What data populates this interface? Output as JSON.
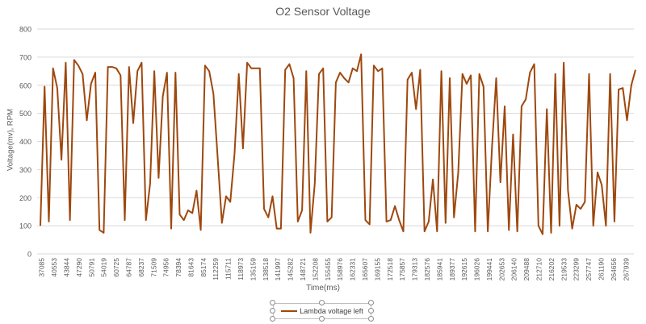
{
  "chart": {
    "title": "O2 Sensor Voltage",
    "xlabel": "Time(ms)",
    "ylabel": "Voltage(mv), RPM",
    "legend_label": "Lambda voltage left",
    "line_color": "#9e480e",
    "grid_color": "#d9d9d9",
    "legend_selected": true
  },
  "chart_data": {
    "type": "line",
    "title": "O2 Sensor Voltage",
    "xlabel": "Time(ms)",
    "ylabel": "Voltage(mv), RPM",
    "ylim": [
      0,
      800
    ],
    "yticks": [
      0,
      100,
      200,
      300,
      400,
      500,
      600,
      700,
      800
    ],
    "grid": true,
    "legend_position": "bottom",
    "x_tick_labels": [
      "37085",
      "40553",
      "43844",
      "47290",
      "50791",
      "54019",
      "60725",
      "64787",
      "68237",
      "71509",
      "74956",
      "78394",
      "81643",
      "85174",
      "112259",
      "115711",
      "118973",
      "135159",
      "138518",
      "141997",
      "145282",
      "148721",
      "152208",
      "155455",
      "158976",
      "162331",
      "165607",
      "169155",
      "172518",
      "175857",
      "179313",
      "182576",
      "185941",
      "189377",
      "192615",
      "196026",
      "199441",
      "202653",
      "206140",
      "209488",
      "212710",
      "216202",
      "219533",
      "223299",
      "257747",
      "261190",
      "264656",
      "267939"
    ],
    "series": [
      {
        "name": "Lambda voltage left",
        "values": [
          100,
          595,
          115,
          660,
          590,
          335,
          680,
          120,
          690,
          670,
          640,
          475,
          605,
          645,
          85,
          75,
          665,
          665,
          660,
          635,
          120,
          665,
          465,
          650,
          680,
          120,
          250,
          650,
          270,
          560,
          645,
          90,
          645,
          140,
          120,
          155,
          145,
          225,
          85,
          670,
          650,
          570,
          345,
          110,
          205,
          185,
          355,
          640,
          375,
          680,
          660,
          660,
          660,
          160,
          130,
          205,
          90,
          90,
          655,
          675,
          625,
          115,
          155,
          650,
          75,
          250,
          640,
          660,
          115,
          130,
          610,
          645,
          625,
          610,
          660,
          650,
          710,
          120,
          105,
          670,
          650,
          660,
          115,
          120,
          170,
          120,
          80,
          620,
          645,
          515,
          655,
          80,
          115,
          265,
          80,
          650,
          110,
          625,
          130,
          290,
          640,
          605,
          635,
          80,
          640,
          595,
          80,
          380,
          625,
          255,
          525,
          85,
          425,
          80,
          525,
          550,
          645,
          675,
          100,
          70,
          515,
          75,
          640,
          100,
          680,
          225,
          90,
          175,
          160,
          185,
          640,
          100,
          290,
          245,
          100,
          640,
          115,
          585,
          590,
          475,
          600,
          655
        ]
      }
    ]
  }
}
